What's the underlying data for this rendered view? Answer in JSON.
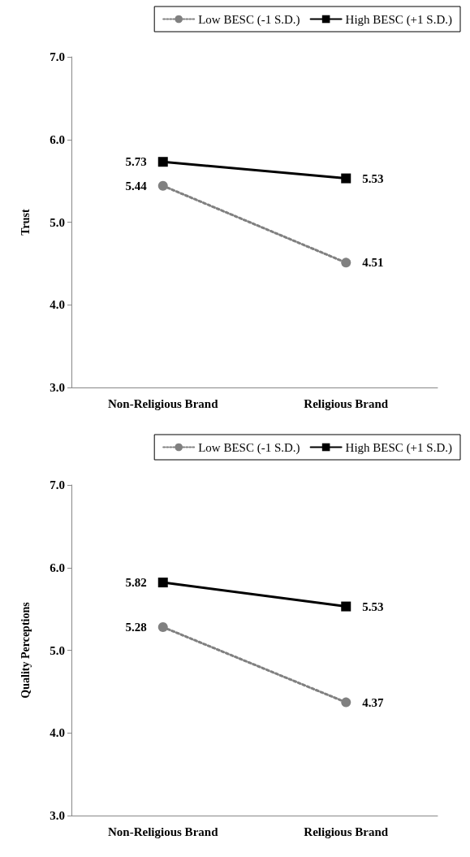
{
  "chart_data": [
    {
      "type": "line",
      "ylabel": "Trust",
      "categories": [
        "Non-Religious Brand",
        "Religious Brand"
      ],
      "series": [
        {
          "name": "Low BESC (-1 S.D.)",
          "color": "#808080",
          "values": [
            5.44,
            4.51
          ],
          "marker": "circle",
          "line_style": "dotted"
        },
        {
          "name": "High BESC (+1 S.D.)",
          "color": "#000000",
          "values": [
            5.73,
            5.53
          ],
          "marker": "square",
          "line_style": "solid"
        }
      ],
      "ylim": [
        3,
        7
      ],
      "yticks": [
        {
          "value": 3,
          "label": "3.0"
        },
        {
          "value": 4,
          "label": "4.0"
        },
        {
          "value": 5,
          "label": "5.0"
        },
        {
          "value": 6,
          "label": "6.0"
        },
        {
          "value": 7,
          "label": "7.0"
        }
      ],
      "data_labels": true,
      "legend": "top"
    },
    {
      "type": "line",
      "ylabel": "Quality Perceptions",
      "categories": [
        "Non-Religious Brand",
        "Religious Brand"
      ],
      "series": [
        {
          "name": "Low BESC (-1 S.D.)",
          "color": "#808080",
          "values": [
            5.28,
            4.37
          ],
          "marker": "circle",
          "line_style": "dotted"
        },
        {
          "name": "High BESC (+1 S.D.)",
          "color": "#000000",
          "values": [
            5.82,
            5.53
          ],
          "marker": "square",
          "line_style": "solid"
        }
      ],
      "ylim": [
        3,
        7
      ],
      "yticks": [
        {
          "value": 3,
          "label": "3.0"
        },
        {
          "value": 4,
          "label": "4.0"
        },
        {
          "value": 5,
          "label": "5.0"
        },
        {
          "value": 6,
          "label": "6.0"
        },
        {
          "value": 7,
          "label": "7.0"
        }
      ],
      "data_labels": true,
      "legend": "top"
    }
  ]
}
